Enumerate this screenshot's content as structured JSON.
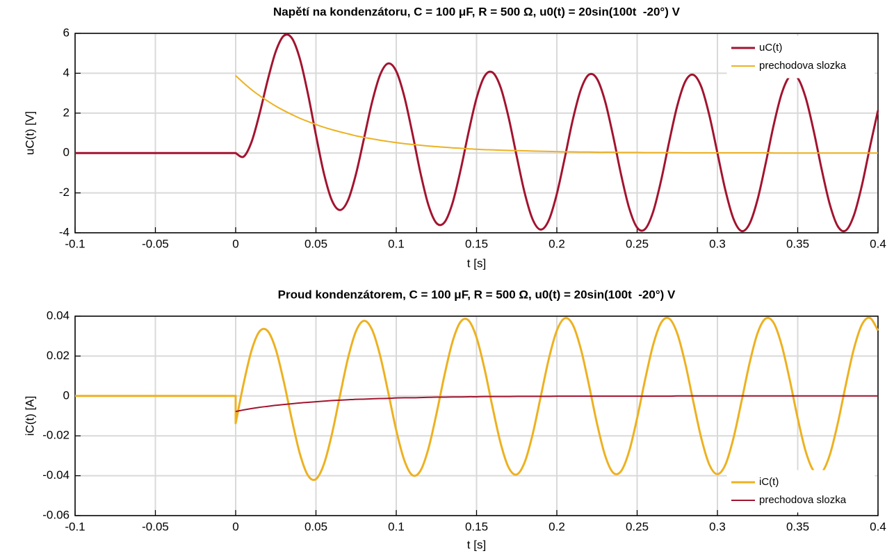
{
  "chart_data": [
    {
      "type": "line",
      "title": "Napětí na kondenzátoru, C = 100 μF, R = 500 Ω, u0(t) = 20sin(100t  -20°) V",
      "xlabel": "t [s]",
      "ylabel": "uC(t) [V]",
      "xlim": [
        -0.1,
        0.4
      ],
      "ylim": [
        -4,
        6
      ],
      "xticks": [
        -0.1,
        -0.05,
        0,
        0.05,
        0.1,
        0.15,
        0.2,
        0.25,
        0.3,
        0.35,
        0.4
      ],
      "yticks": [
        -4,
        -2,
        0,
        2,
        4,
        6
      ],
      "grid": true,
      "legend": "northeast",
      "x": [
        -0.1,
        0,
        0,
        0.005,
        0.01,
        0.015,
        0.02,
        0.025,
        0.03,
        0.035,
        0.04,
        0.045,
        0.05,
        0.055,
        0.06,
        0.065,
        0.07,
        0.075,
        0.08,
        0.085,
        0.09,
        0.095,
        0.1,
        0.105,
        0.11,
        0.115,
        0.12,
        0.125,
        0.13,
        0.135,
        0.14,
        0.145,
        0.15,
        0.155,
        0.16,
        0.165,
        0.17,
        0.175,
        0.18,
        0.185,
        0.19,
        0.195,
        0.2,
        0.205,
        0.21,
        0.215,
        0.22,
        0.225,
        0.23,
        0.235,
        0.24,
        0.245,
        0.25,
        0.255,
        0.26,
        0.265,
        0.27,
        0.275,
        0.28,
        0.285,
        0.29,
        0.295,
        0.3,
        0.305,
        0.31,
        0.315,
        0.32,
        0.325,
        0.33,
        0.335,
        0.34,
        0.345,
        0.35,
        0.355,
        0.36,
        0.365,
        0.37,
        0.375,
        0.38,
        0.385,
        0.39,
        0.395,
        0.4
      ],
      "series": [
        {
          "name": "uC(t)",
          "color": "#a2142f",
          "values": [
            0,
            0,
            0,
            -0.18,
            0.58,
            2.01,
            3.67,
            5.1,
            5.88,
            5.76,
            4.72,
            2.97,
            0.9,
            -1.04,
            -2.39,
            -2.86,
            -2.36,
            -1.03,
            0.76,
            2.57,
            3.93,
            4.49,
            4.1,
            2.84,
            1.01,
            -0.97,
            -2.6,
            -3.51,
            -3.48,
            -2.52,
            -0.88,
            1.03,
            2.75,
            3.85,
            4.04,
            3.29,
            1.77,
            -0.16,
            -2.01,
            -3.34,
            -3.84,
            -3.37,
            -2.05,
            -0.22,
            1.69,
            3.19,
            3.93,
            3.72,
            2.61,
            0.87,
            -1.08,
            -2.75,
            -3.74,
            -3.81,
            -2.94,
            -1.35,
            0.58,
            2.37,
            3.59,
            3.92,
            3.31,
            1.88,
            0,
            -1.88,
            -3.3,
            -3.91,
            -3.55,
            -2.33,
            -0.54,
            1.39,
            2.98,
            3.84,
            3.76,
            2.76,
            1.09,
            -0.85,
            -2.58,
            -3.68,
            -3.88,
            -3.12,
            -1.61,
            0.31,
            2.14
          ]
        },
        {
          "name": "prechodova slozka",
          "color": "#edb120",
          "values": [
            null,
            null,
            3.88,
            3.51,
            3.17,
            2.87,
            2.6,
            2.35,
            2.13,
            1.93,
            1.74,
            1.58,
            1.43,
            1.29,
            1.17,
            1.06,
            0.96,
            0.86,
            0.78,
            0.71,
            0.64,
            0.58,
            0.52,
            0.47,
            0.43,
            0.39,
            0.35,
            0.32,
            0.29,
            0.26,
            0.24,
            0.21,
            0.19,
            0.17,
            0.16,
            0.14,
            0.13,
            0.12,
            0.11,
            0.1,
            0.09,
            0.08,
            0.07,
            0.06,
            0.06,
            0.05,
            0.05,
            0.04,
            0.04,
            0.04,
            0.03,
            0.03,
            0.03,
            0.02,
            0.02,
            0.02,
            0.02,
            0.02,
            0.01,
            0.01,
            0.01,
            0.01,
            0.01,
            0.01,
            0.01,
            0.01,
            0.01,
            0.01,
            0.01,
            0,
            0,
            0,
            0,
            0,
            0,
            0,
            0,
            0,
            0,
            0,
            0,
            0,
            0
          ]
        }
      ]
    },
    {
      "type": "line",
      "title": "Proud kondenzátorem, C = 100 μF, R = 500 Ω, u0(t) = 20sin(100t  -20°) V",
      "xlabel": "t [s]",
      "ylabel": "iC(t) [A]",
      "xlim": [
        -0.1,
        0.4
      ],
      "ylim": [
        -0.06,
        0.04
      ],
      "xticks": [
        -0.1,
        -0.05,
        0,
        0.05,
        0.1,
        0.15,
        0.2,
        0.25,
        0.3,
        0.35,
        0.4
      ],
      "yticks": [
        -0.06,
        -0.04,
        -0.02,
        0,
        0.02,
        0.04
      ],
      "grid": true,
      "legend": "southeast",
      "x": [
        -0.1,
        0,
        0,
        0.005,
        0.01,
        0.015,
        0.02,
        0.025,
        0.03,
        0.035,
        0.04,
        0.045,
        0.05,
        0.055,
        0.06,
        0.065,
        0.07,
        0.075,
        0.08,
        0.085,
        0.09,
        0.095,
        0.1,
        0.105,
        0.11,
        0.115,
        0.12,
        0.125,
        0.13,
        0.135,
        0.14,
        0.145,
        0.15,
        0.155,
        0.16,
        0.165,
        0.17,
        0.175,
        0.18,
        0.185,
        0.19,
        0.195,
        0.2,
        0.205,
        0.21,
        0.215,
        0.22,
        0.225,
        0.23,
        0.235,
        0.24,
        0.245,
        0.25,
        0.255,
        0.26,
        0.265,
        0.27,
        0.275,
        0.28,
        0.285,
        0.29,
        0.295,
        0.3,
        0.305,
        0.31,
        0.315,
        0.32,
        0.325,
        0.33,
        0.335,
        0.34,
        0.345,
        0.35,
        0.355,
        0.36,
        0.365,
        0.37,
        0.375,
        0.38,
        0.385,
        0.39,
        0.395,
        0.4
      ],
      "series": [
        {
          "name": "iC(t)",
          "color": "#edb120",
          "values": [
            0,
            0,
            -0.0137,
            0.0064,
            0.0231,
            0.0325,
            0.0325,
            0.0233,
            0.0071,
            -0.0119,
            -0.029,
            -0.0398,
            -0.0417,
            -0.0341,
            -0.0189,
            0.0004,
            0.0191,
            0.0326,
            0.0377,
            0.0331,
            0.0201,
            0.0018,
            -0.0172,
            -0.0322,
            -0.0397,
            -0.0376,
            -0.0265,
            -0.0091,
            0.0103,
            0.0271,
            0.0371,
            0.0379,
            0.0293,
            0.0135,
            -0.0058,
            -0.0237,
            -0.0359,
            -0.0394,
            -0.0332,
            -0.019,
            -0.0002,
            0.0186,
            0.0328,
            0.039,
            0.0356,
            0.0234,
            0.0055,
            -0.0138,
            -0.0297,
            -0.0384,
            -0.0377,
            -0.0278,
            -0.0111,
            0.0083,
            0.0257,
            0.0368,
            0.0388,
            0.0313,
            0.0162,
            -0.0029,
            -0.0213,
            -0.0345,
            -0.0392,
            -0.0344,
            -0.0211,
            -0.0027,
            0.0164,
            0.0315,
            0.0388,
            0.0367,
            0.0255,
            0.0082,
            -0.0112,
            -0.0279,
            -0.0377,
            -0.0383,
            -0.0295,
            -0.0135,
            0.0058,
            0.0237,
            0.0358,
            0.0391,
            0.0328
          ]
        },
        {
          "name": "prechodova slozka",
          "color": "#a2142f",
          "values": [
            null,
            null,
            -0.0078,
            -0.007,
            -0.0063,
            -0.0057,
            -0.0052,
            -0.0047,
            -0.0043,
            -0.0039,
            -0.0035,
            -0.0032,
            -0.0029,
            -0.0026,
            -0.0023,
            -0.0021,
            -0.0019,
            -0.0017,
            -0.0016,
            -0.0014,
            -0.0013,
            -0.0012,
            -0.001,
            -0.0009,
            -0.0009,
            -0.0008,
            -0.0007,
            -0.0006,
            -0.0006,
            -0.0005,
            -0.0005,
            -0.0004,
            -0.0004,
            -0.0003,
            -0.0003,
            -0.0003,
            -0.0003,
            -0.0002,
            -0.0002,
            -0.0002,
            -0.0002,
            -0.0002,
            -0.0001,
            -0.0001,
            -0.0001,
            -0.0001,
            -0.0001,
            -0.0001,
            -0.0001,
            -0.0001,
            -0.0001,
            -0.0001,
            -0.0001,
            -0.0001,
            -0.0001,
            -0.0001,
            -0.0001,
            0,
            0,
            0,
            0,
            0,
            0,
            0,
            0,
            0,
            0,
            0,
            0,
            0,
            0,
            0,
            0,
            0,
            0,
            0,
            0,
            0,
            0,
            0,
            0,
            0,
            0
          ]
        }
      ]
    }
  ]
}
